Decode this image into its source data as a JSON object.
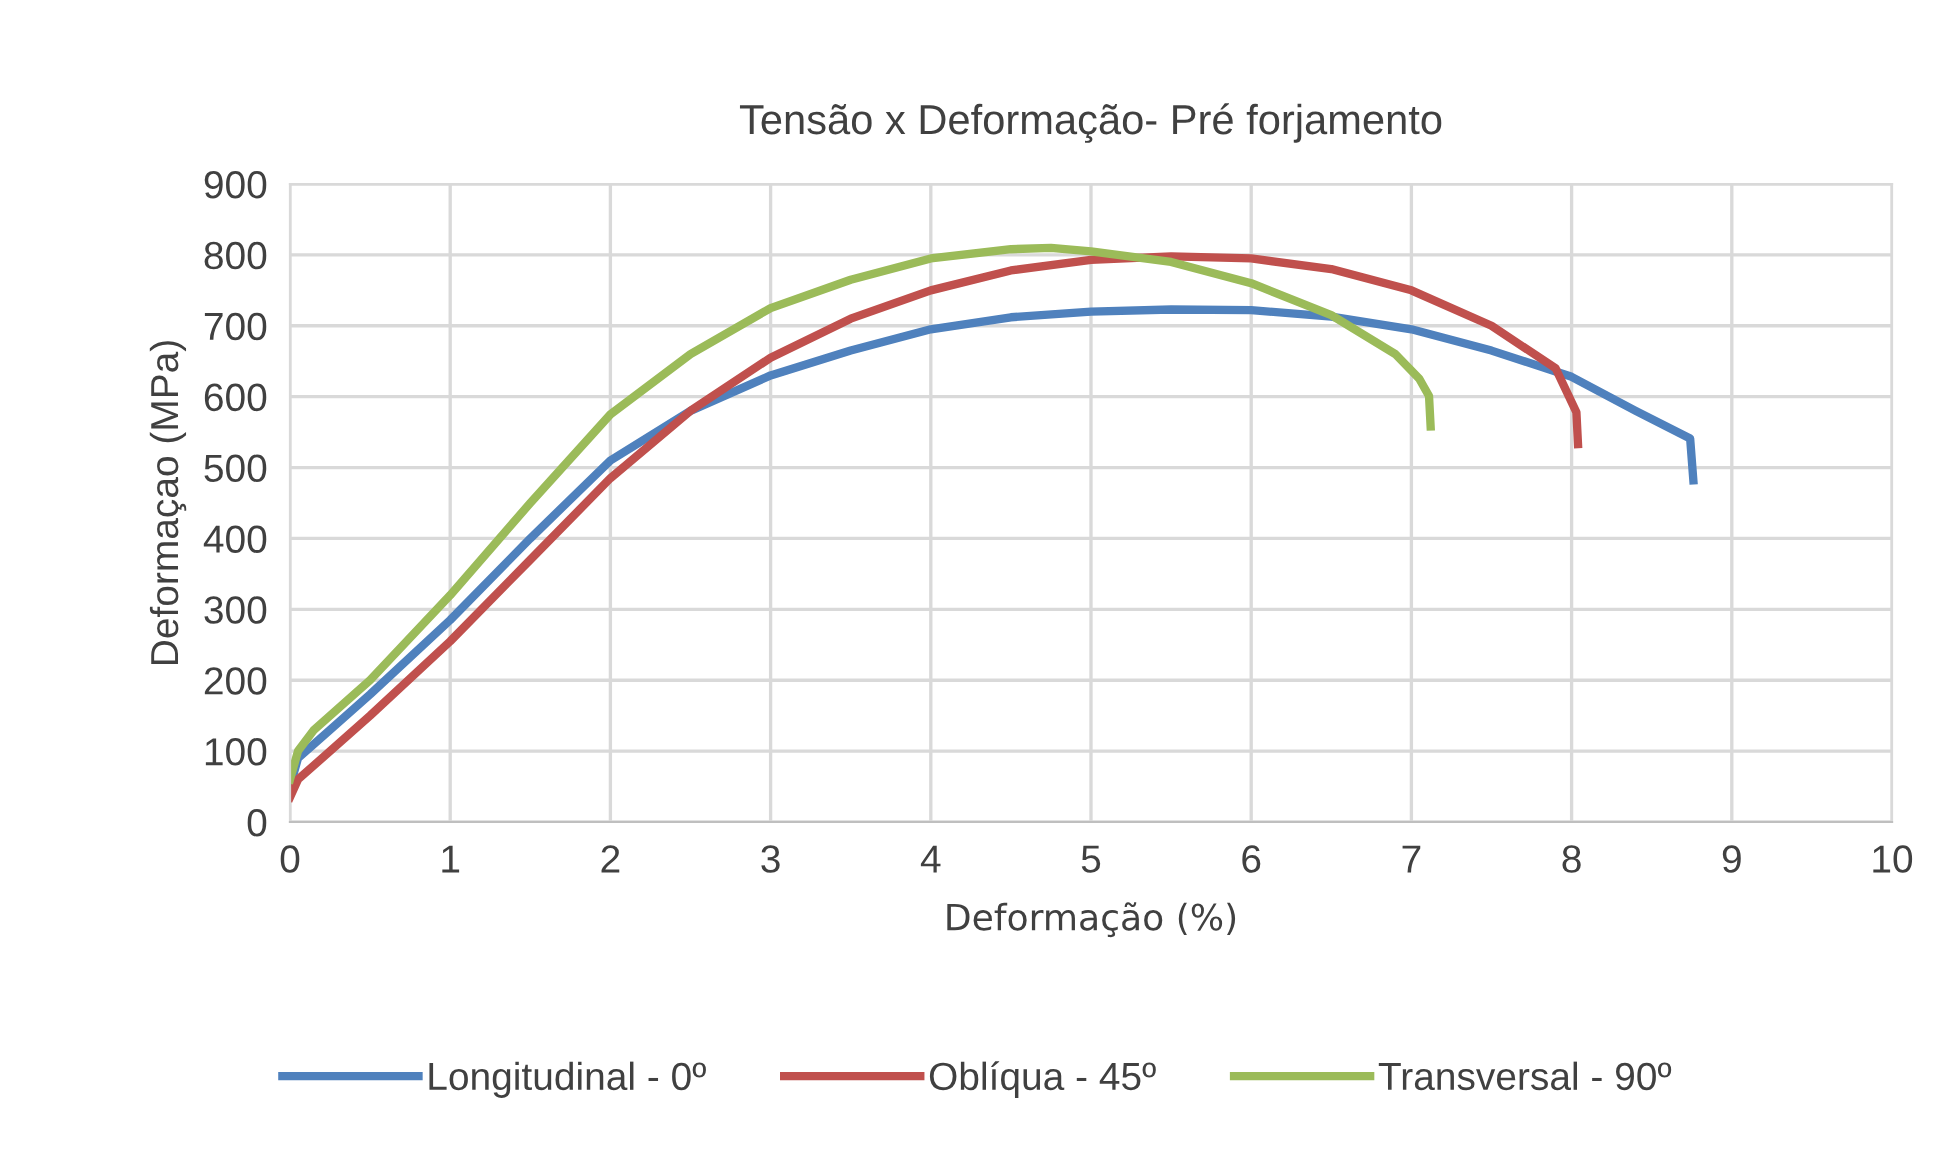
{
  "chart_data": {
    "type": "line",
    "title": "Tensão x Deformação- Pré forjamento",
    "xlabel": "Deformação (%)",
    "ylabel": "Deformaçao (MPa)",
    "xlim": [
      0,
      10
    ],
    "xticks": [
      0,
      1,
      2,
      3,
      4,
      5,
      6,
      7,
      8,
      9,
      10
    ],
    "ylim": [
      0,
      900
    ],
    "yticks": [
      0,
      100,
      200,
      300,
      400,
      500,
      600,
      700,
      800,
      900
    ],
    "grid": true,
    "legend": "bottom",
    "marker": "none",
    "line_style": "solid",
    "series": [
      {
        "name": "Longitudinal - 0º",
        "color": "#4f81bd",
        "x": [
          0,
          0.05,
          0.25,
          0.5,
          1,
          1.5,
          2,
          2.5,
          3,
          3.5,
          4,
          4.5,
          5,
          5.5,
          6,
          6.5,
          7,
          7.5,
          8,
          8.4,
          8.74,
          8.76
        ],
        "values": [
          50,
          90,
          130,
          180,
          285,
          400,
          510,
          580,
          630,
          665,
          695,
          712,
          720,
          723,
          722,
          713,
          695,
          665,
          628,
          580,
          541,
          482
        ]
      },
      {
        "name": "Oblíqua - 45º",
        "color": "#c0504d",
        "x": [
          0,
          0.05,
          0.25,
          0.5,
          1,
          1.5,
          2,
          2.5,
          3,
          3.5,
          4,
          4.5,
          5,
          5.5,
          6,
          6.5,
          7,
          7.5,
          7.9,
          8.03,
          8.04
        ],
        "values": [
          35,
          60,
          100,
          150,
          255,
          370,
          485,
          580,
          655,
          710,
          750,
          778,
          793,
          798,
          795,
          780,
          750,
          700,
          640,
          578,
          533
        ]
      },
      {
        "name": "Transversal - 90º",
        "color": "#9bbb59",
        "x": [
          0,
          0.05,
          0.15,
          0.5,
          1,
          1.5,
          2,
          2.5,
          3,
          3.5,
          4,
          4.5,
          4.75,
          5,
          5.5,
          6,
          6.5,
          6.9,
          7.05,
          7.11,
          7.12
        ],
        "values": [
          60,
          100,
          130,
          200,
          320,
          450,
          575,
          660,
          725,
          765,
          795,
          808,
          810,
          805,
          790,
          760,
          715,
          660,
          625,
          601,
          558
        ]
      }
    ]
  }
}
